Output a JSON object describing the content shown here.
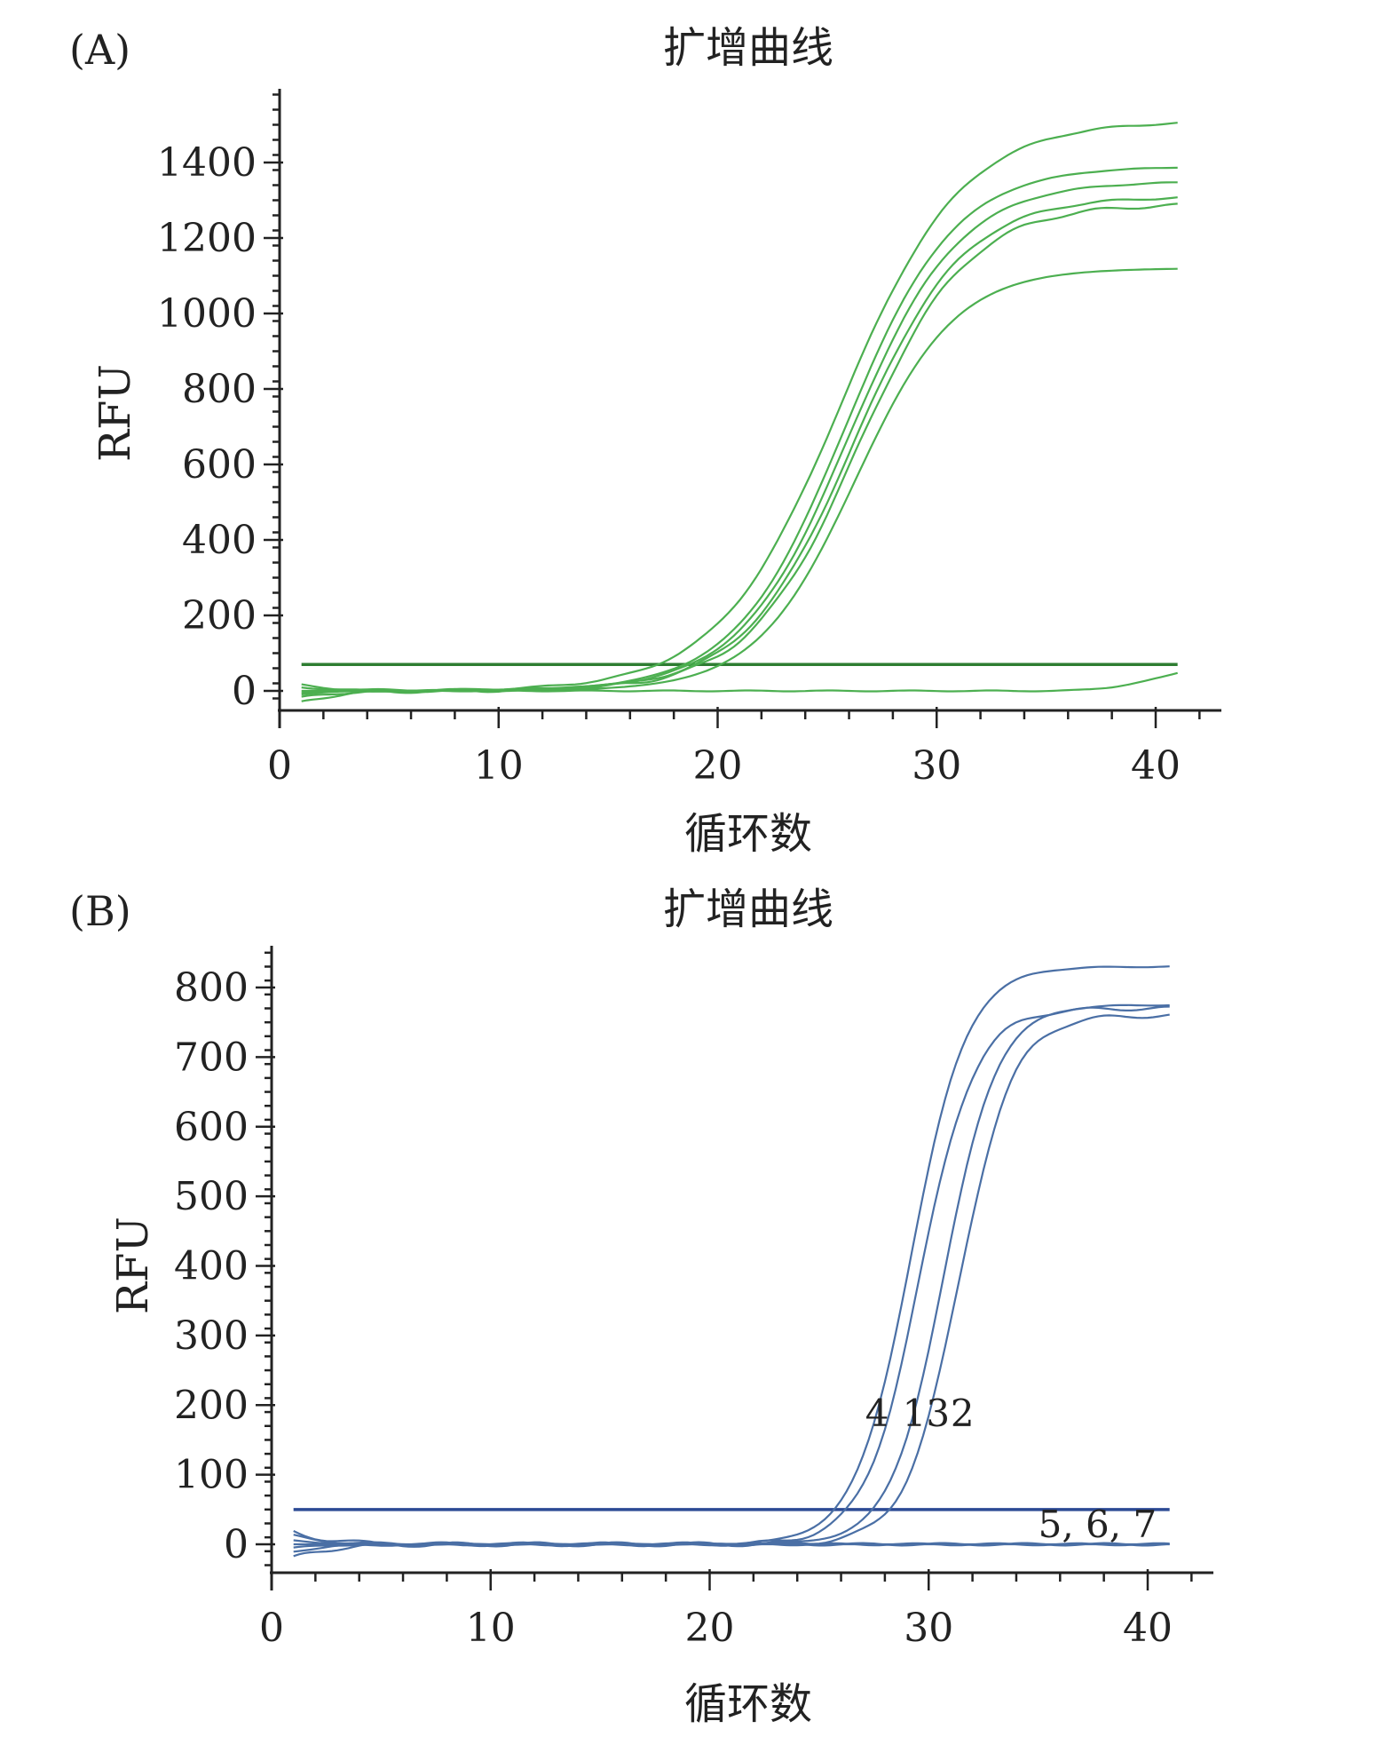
{
  "chart_data": [
    {
      "id": "A",
      "type": "line",
      "panel_label": "(A)",
      "title": "扩增曲线",
      "xlabel": "循环数",
      "ylabel": "RFU",
      "xlim": [
        0,
        43
      ],
      "ylim": [
        -60,
        1600
      ],
      "xticks": [
        0,
        10,
        20,
        30,
        40
      ],
      "yticks": [
        0,
        200,
        400,
        600,
        800,
        1000,
        1200,
        1400
      ],
      "color": "#4caf50",
      "threshold": 70,
      "threshold_color": "#2e7d32",
      "curves": [
        {
          "plateau": 1510,
          "ct": 25.6,
          "k": 0.36,
          "start": 15
        },
        {
          "plateau": 1390,
          "ct": 25.8,
          "k": 0.4,
          "start": -5
        },
        {
          "plateau": 1350,
          "ct": 26.0,
          "k": 0.4,
          "start": 10
        },
        {
          "plateau": 1310,
          "ct": 26.2,
          "k": 0.4,
          "start": -18
        },
        {
          "plateau": 1290,
          "ct": 26.4,
          "k": 0.4,
          "start": -30
        },
        {
          "plateau": 1120,
          "ct": 26.3,
          "k": 0.44,
          "start": 0
        },
        {
          "plateau": 0,
          "ct": 50,
          "k": 0.4,
          "start": -8,
          "late_rise": 48
        }
      ]
    },
    {
      "id": "B",
      "type": "line",
      "panel_label": "(B)",
      "title": "扩增曲线",
      "xlabel": "循环数",
      "ylabel": "RFU",
      "xlim": [
        0,
        43
      ],
      "ylim": [
        -50,
        850
      ],
      "xticks": [
        0,
        10,
        20,
        30,
        40
      ],
      "yticks": [
        0,
        100,
        200,
        300,
        400,
        500,
        600,
        700,
        800
      ],
      "color": "#4a6fa5",
      "threshold": 50,
      "threshold_color": "#2c4a94",
      "curves": [
        {
          "plateau": 830,
          "ct": 29.2,
          "k": 0.78,
          "start": 5
        },
        {
          "plateau": 770,
          "ct": 29.6,
          "k": 0.8,
          "start": 18
        },
        {
          "plateau": 775,
          "ct": 30.7,
          "k": 0.82,
          "start": -5
        },
        {
          "plateau": 760,
          "ct": 31.4,
          "k": 0.82,
          "start": -20
        },
        {
          "plateau": 0,
          "ct": 60,
          "k": 0.4,
          "start": 0
        },
        {
          "plateau": 0,
          "ct": 60,
          "k": 0.4,
          "start": -10
        },
        {
          "plateau": 0,
          "ct": 60,
          "k": 0.4,
          "start": 12
        }
      ],
      "annotations": [
        {
          "text": "4",
          "x": 27.1,
          "y": 170
        },
        {
          "text": "13",
          "x": 28.8,
          "y": 170
        },
        {
          "text": "2",
          "x": 31.0,
          "y": 170
        },
        {
          "text": "5, 6, 7",
          "x": 35.0,
          "y": 10
        }
      ]
    }
  ]
}
